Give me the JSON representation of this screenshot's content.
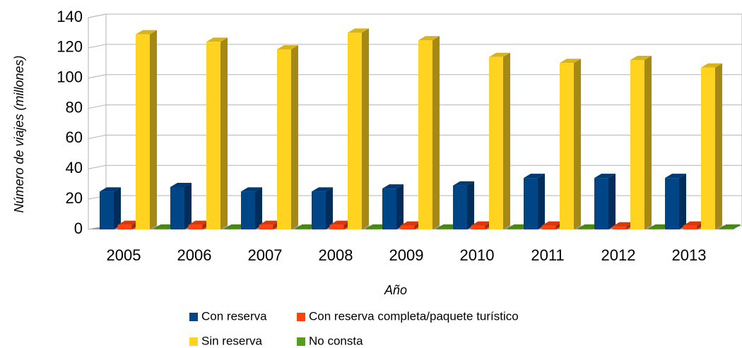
{
  "chart_data": {
    "type": "bar3d",
    "x_label": "Año",
    "y_label": "Número de viajes (millones)",
    "categories": [
      "2005",
      "2006",
      "2007",
      "2008",
      "2009",
      "2010",
      "2011",
      "2012",
      "2013"
    ],
    "series": [
      {
        "name": "Con reserva",
        "color": "#004586",
        "values": [
          25,
          28,
          25,
          25,
          27,
          29,
          34,
          34,
          34
        ]
      },
      {
        "name": "Con reserva completa/paquete turístico",
        "color": "#ff420e",
        "values": [
          3,
          3,
          3,
          3,
          2.5,
          2.5,
          2.5,
          2,
          2.5
        ]
      },
      {
        "name": "Sin reserva",
        "color": "#ffd320",
        "values": [
          129,
          124,
          119,
          130,
          125,
          114,
          110,
          112,
          107
        ]
      },
      {
        "name": "No consta",
        "color": "#579d1c",
        "values": [
          0.5,
          0.5,
          0.5,
          0.5,
          0.5,
          0.5,
          0.5,
          0.5,
          0.5
        ]
      }
    ],
    "ylim": [
      0,
      140
    ],
    "yticks": [
      0,
      20,
      40,
      60,
      80,
      100,
      120,
      140
    ],
    "grid": true
  }
}
